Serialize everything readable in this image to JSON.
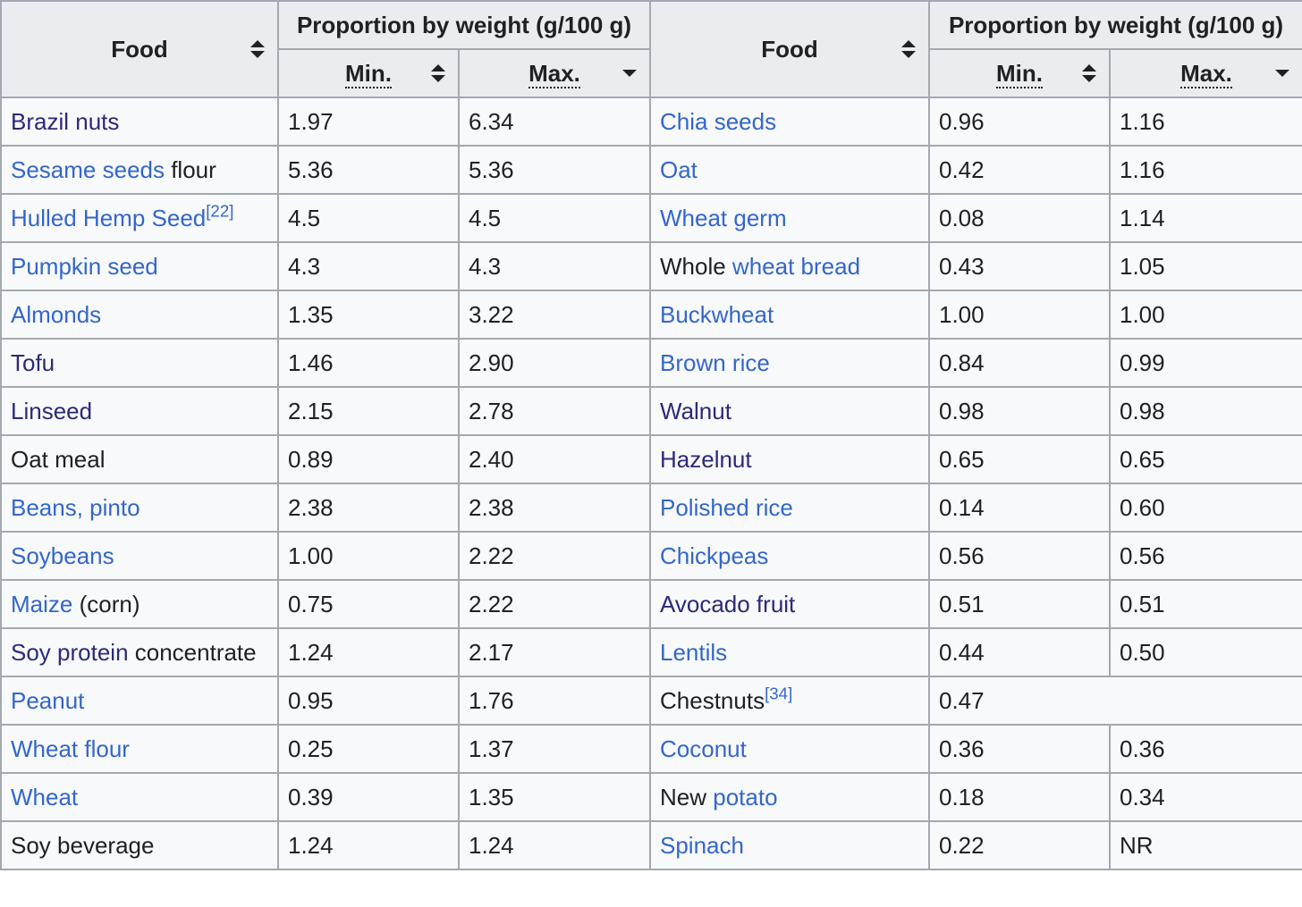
{
  "headers": {
    "food": "Food",
    "proportion": "Proportion by weight (g/100 g)",
    "min": "Min.",
    "max": "Max."
  },
  "rows": [
    {
      "left": {
        "link": "Brazil nuts",
        "visited": true,
        "min": "1.97",
        "max": "6.34"
      },
      "right": {
        "link": "Chia seeds",
        "visited": false,
        "min": "0.96",
        "max": "1.16"
      }
    },
    {
      "left": {
        "link": "Sesame seeds",
        "suffix": " flour",
        "visited": false,
        "min": "5.36",
        "max": "5.36"
      },
      "right": {
        "link": "Oat",
        "visited": false,
        "min": "0.42",
        "max": "1.16"
      }
    },
    {
      "left": {
        "link": "Hulled Hemp Seed",
        "ref": "[22]",
        "visited": false,
        "min": "4.5",
        "max": "4.5"
      },
      "right": {
        "link": "Wheat germ",
        "visited": false,
        "min": "0.08",
        "max": "1.14"
      }
    },
    {
      "left": {
        "link": "Pumpkin seed",
        "visited": false,
        "min": "4.3",
        "max": "4.3"
      },
      "right": {
        "prefix": "Whole ",
        "link": "wheat bread",
        "visited": false,
        "min": "0.43",
        "max": "1.05"
      }
    },
    {
      "left": {
        "link": "Almonds",
        "visited": false,
        "min": "1.35",
        "max": "3.22"
      },
      "right": {
        "link": "Buckwheat",
        "visited": false,
        "min": "1.00",
        "max": "1.00"
      }
    },
    {
      "left": {
        "link": "Tofu",
        "visited": true,
        "min": "1.46",
        "max": "2.90"
      },
      "right": {
        "link": "Brown rice",
        "visited": false,
        "min": "0.84",
        "max": "0.99"
      }
    },
    {
      "left": {
        "link": "Linseed",
        "visited": true,
        "min": "2.15",
        "max": "2.78"
      },
      "right": {
        "link": "Walnut",
        "visited": true,
        "min": "0.98",
        "max": "0.98"
      }
    },
    {
      "left": {
        "prefix": "Oat meal",
        "visited": false,
        "min": "0.89",
        "max": "2.40"
      },
      "right": {
        "link": "Hazelnut",
        "visited": true,
        "min": "0.65",
        "max": "0.65"
      }
    },
    {
      "left": {
        "link": "Beans, pinto",
        "visited": false,
        "min": "2.38",
        "max": "2.38"
      },
      "right": {
        "link": "Polished rice",
        "visited": false,
        "min": "0.14",
        "max": "0.60"
      }
    },
    {
      "left": {
        "link": "Soybeans",
        "visited": false,
        "min": "1.00",
        "max": "2.22"
      },
      "right": {
        "link": "Chickpeas",
        "visited": false,
        "min": "0.56",
        "max": "0.56"
      }
    },
    {
      "left": {
        "link": "Maize",
        "suffix": " (corn)",
        "visited": false,
        "min": "0.75",
        "max": "2.22"
      },
      "right": {
        "link": "Avocado fruit",
        "visited": true,
        "min": "0.51",
        "max": "0.51"
      }
    },
    {
      "left": {
        "link": "Soy protein",
        "suffix": " concentrate",
        "visited": true,
        "min": "1.24",
        "max": "2.17"
      },
      "right": {
        "link": "Lentils",
        "visited": false,
        "min": "0.44",
        "max": "0.50"
      }
    },
    {
      "left": {
        "link": "Peanut",
        "visited": false,
        "min": "0.95",
        "max": "1.76"
      },
      "right": {
        "prefix": "Chestnuts",
        "ref": "[34]",
        "min": "0.47",
        "merged": true
      }
    },
    {
      "left": {
        "link": "Wheat flour",
        "visited": false,
        "min": "0.25",
        "max": "1.37"
      },
      "right": {
        "link": "Coconut",
        "visited": false,
        "min": "0.36",
        "max": "0.36"
      }
    },
    {
      "left": {
        "link": "Wheat",
        "visited": false,
        "min": "0.39",
        "max": "1.35"
      },
      "right": {
        "prefix": "New ",
        "link": "potato",
        "visited": false,
        "min": "0.18",
        "max": "0.34"
      }
    },
    {
      "left": {
        "prefix": "Soy ",
        "suffix": "beverage",
        "visited": false,
        "min": "1.24",
        "max": "1.24"
      },
      "right": {
        "link": "Spinach",
        "visited": false,
        "min": "0.22",
        "max": "NR"
      }
    }
  ]
}
